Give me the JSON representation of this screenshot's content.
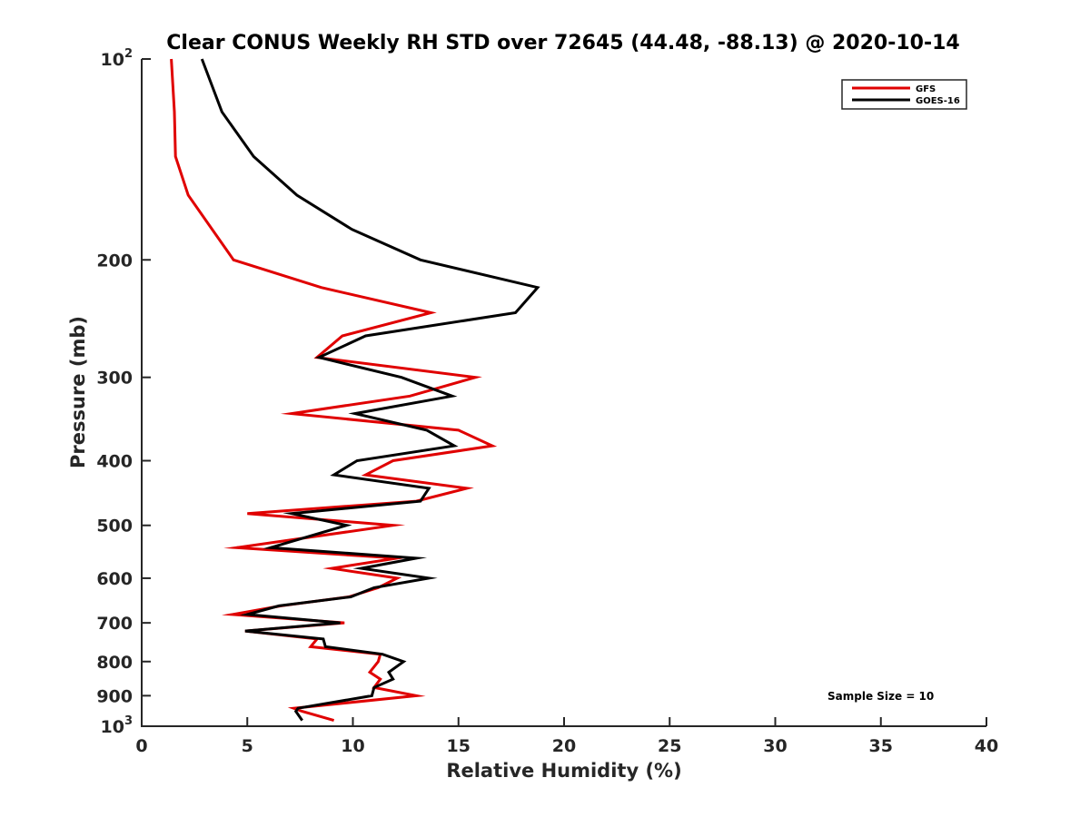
{
  "chart_data": {
    "type": "line",
    "title": "Clear CONUS Weekly RH STD over 72645 (44.48, -88.13) @ 2020-10-14",
    "xlabel": "Relative Humidity (%)",
    "ylabel": "Pressure (mb)",
    "xlim": [
      0,
      40
    ],
    "ylim": [
      100,
      1000
    ],
    "yscale": "log",
    "yreverse": true,
    "grid": false,
    "xticks": [
      0,
      5,
      10,
      15,
      20,
      25,
      30,
      35,
      40
    ],
    "xtick_labels": [
      "0",
      "5",
      "10",
      "15",
      "20",
      "25",
      "30",
      "35",
      "40"
    ],
    "yticks": [
      100,
      200,
      300,
      400,
      500,
      600,
      700,
      800,
      900,
      1000
    ],
    "ytick_labels": [
      {
        "base": "10",
        "exp": "2"
      },
      {
        "base": "200",
        "exp": ""
      },
      {
        "base": "300",
        "exp": ""
      },
      {
        "base": "400",
        "exp": ""
      },
      {
        "base": "500",
        "exp": ""
      },
      {
        "base": "600",
        "exp": ""
      },
      {
        "base": "700",
        "exp": ""
      },
      {
        "base": "800",
        "exp": ""
      },
      {
        "base": "900",
        "exp": ""
      },
      {
        "base": "10",
        "exp": "3"
      }
    ],
    "legend_position": "top-right",
    "annotation": "Sample Size = 10",
    "series": [
      {
        "name": "GFS",
        "color": "#e00000",
        "pressure": [
          100,
          120,
          140,
          160,
          200,
          220,
          240,
          260,
          280,
          300,
          320,
          340,
          360,
          380,
          400,
          420,
          440,
          460,
          480,
          500,
          540,
          560,
          580,
          600,
          620,
          640,
          660,
          680,
          700,
          720,
          740,
          760,
          780,
          800,
          830,
          850,
          875,
          900,
          940,
          950,
          980
        ],
        "values": [
          1.4,
          1.55,
          1.6,
          2.2,
          4.35,
          8.5,
          13.7,
          9.5,
          8.3,
          15.8,
          12.7,
          7.1,
          15.0,
          16.6,
          11.9,
          10.6,
          15.4,
          13.0,
          5.0,
          11.9,
          4.5,
          12.1,
          9.0,
          12.1,
          11.2,
          9.8,
          6.6,
          4.3,
          9.6,
          4.9,
          8.3,
          8.0,
          11.3,
          11.2,
          10.8,
          11.3,
          11.0,
          13.0,
          7.2,
          7.6,
          9.1
        ]
      },
      {
        "name": "GOES-16",
        "color": "#000000",
        "pressure": [
          100,
          120,
          140,
          160,
          180,
          200,
          220,
          240,
          260,
          280,
          300,
          320,
          340,
          360,
          380,
          400,
          420,
          440,
          460,
          480,
          500,
          540,
          560,
          580,
          600,
          620,
          640,
          660,
          680,
          700,
          720,
          740,
          760,
          780,
          800,
          830,
          850,
          875,
          900,
          940,
          950,
          980
        ],
        "values": [
          2.85,
          3.8,
          5.3,
          7.35,
          9.95,
          13.2,
          18.75,
          17.7,
          10.6,
          8.4,
          12.3,
          14.7,
          10.1,
          13.5,
          14.8,
          10.2,
          9.1,
          13.6,
          13.2,
          7.1,
          9.7,
          6.1,
          13.0,
          10.4,
          13.6,
          11.0,
          9.9,
          6.5,
          5.0,
          9.4,
          4.9,
          8.6,
          8.7,
          11.4,
          12.4,
          11.7,
          11.9,
          11.0,
          10.9,
          7.4,
          7.3,
          7.6
        ]
      }
    ]
  }
}
